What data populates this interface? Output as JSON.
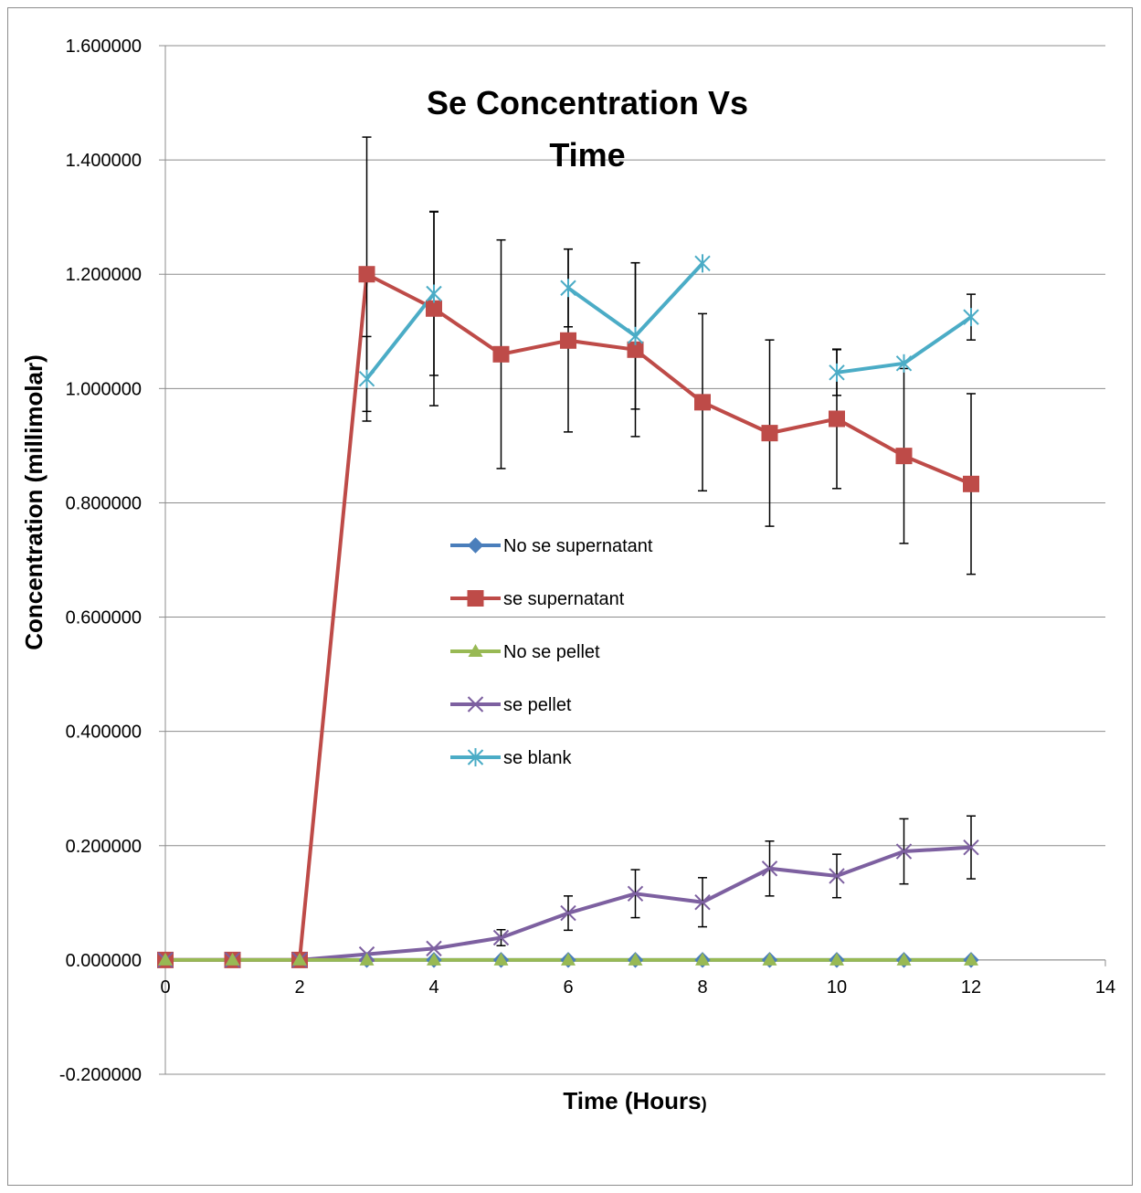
{
  "chart_data": {
    "type": "line",
    "title_line1": "Se Concentration Vs",
    "title_line2": "Time",
    "xlabel": "Time (Hours",
    "xlabel_suffix": ")",
    "ylabel": "Concentration (millimolar)",
    "xlim": [
      0,
      14
    ],
    "ylim": [
      -0.2,
      1.6
    ],
    "x_ticks": [
      "0",
      "2",
      "4",
      "6",
      "8",
      "10",
      "12",
      "14"
    ],
    "y_ticks": [
      "-0.200000",
      "0.000000",
      "0.200000",
      "0.400000",
      "0.600000",
      "0.800000",
      "1.000000",
      "1.200000",
      "1.400000",
      "1.600000"
    ],
    "grid": "horizontal",
    "legend_position": "center",
    "series": [
      {
        "name": "No se supernatant",
        "color": "#4a7ebb",
        "marker": "diamond",
        "x": [
          0,
          1,
          2,
          3,
          4,
          5,
          6,
          7,
          8,
          9,
          10,
          11,
          12
        ],
        "values": [
          0,
          0,
          0,
          0,
          0,
          0,
          0,
          0,
          0,
          0,
          0,
          0,
          0
        ]
      },
      {
        "name": "se supernatant",
        "color": "#be4b48",
        "marker": "square",
        "x": [
          0,
          1,
          2,
          3,
          4,
          5,
          6,
          7,
          8,
          9,
          10,
          11,
          12
        ],
        "values": [
          0,
          0,
          0,
          1.2,
          1.14,
          1.06,
          1.084,
          1.068,
          0.976,
          0.922,
          0.947,
          0.882,
          0.833
        ],
        "error": [
          0,
          0,
          0,
          0.24,
          0.17,
          0.2,
          0.16,
          0.152,
          0.155,
          0.163,
          0.122,
          0.153,
          0.158
        ]
      },
      {
        "name": "No se pellet",
        "color": "#98b954",
        "marker": "triangle",
        "x": [
          0,
          1,
          2,
          3,
          4,
          5,
          6,
          7,
          8,
          9,
          10,
          11,
          12
        ],
        "values": [
          0,
          0,
          0,
          0,
          0,
          0,
          0,
          0,
          0,
          0,
          0,
          0,
          0
        ]
      },
      {
        "name": "se pellet",
        "color": "#7d60a0",
        "marker": "x",
        "x": [
          0,
          1,
          2,
          3,
          4,
          5,
          6,
          7,
          8,
          9,
          10,
          11,
          12
        ],
        "values": [
          0,
          0,
          0,
          0.01,
          0.02,
          0.039,
          0.082,
          0.116,
          0.101,
          0.16,
          0.147,
          0.19,
          0.197
        ],
        "error": [
          0,
          0,
          0,
          0,
          0,
          0.014,
          0.03,
          0.042,
          0.043,
          0.048,
          0.038,
          0.057,
          0.055
        ]
      },
      {
        "name": "se blank",
        "color": "#4bacc6",
        "marker": "star",
        "x": [
          0,
          1,
          2,
          3,
          4,
          5,
          6,
          7,
          8,
          9,
          10,
          11,
          12
        ],
        "values": [
          null,
          null,
          null,
          1.017,
          1.166,
          null,
          1.176,
          1.092,
          1.219,
          null,
          1.028,
          1.044,
          1.125
        ],
        "error": [
          0,
          0,
          0,
          0.074,
          0.143,
          0,
          0.068,
          0.128,
          0,
          0,
          0.04,
          0,
          0.04
        ]
      }
    ]
  }
}
